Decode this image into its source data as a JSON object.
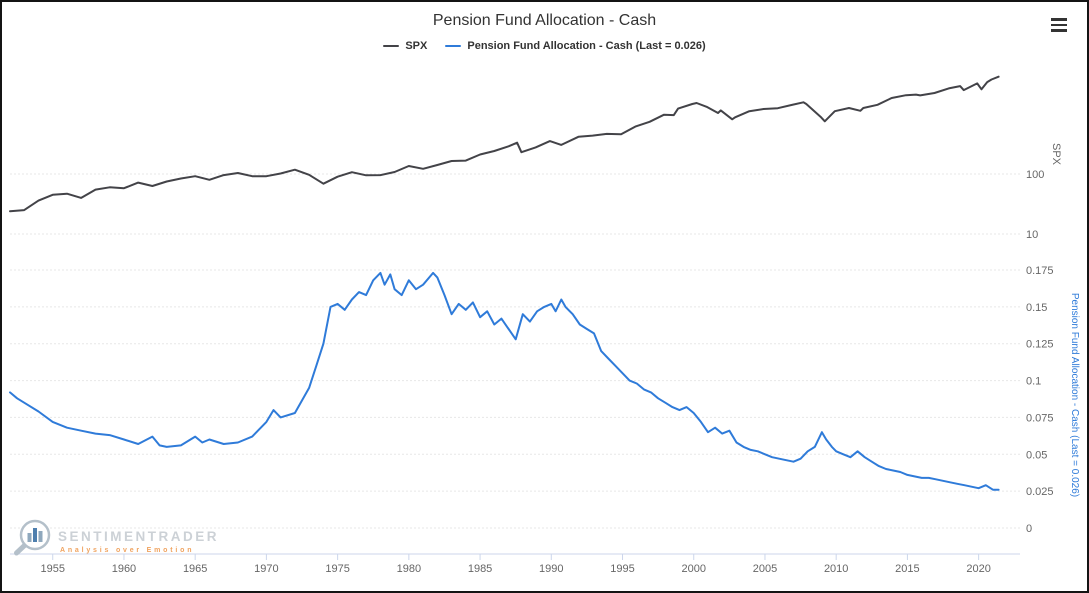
{
  "chart": {
    "title": "Pension Fund Allocation - Cash",
    "legend": [
      {
        "label": "SPX",
        "color": "#434348"
      },
      {
        "label": "Pension Fund Allocation - Cash (Last = 0.026)",
        "color": "#2f7bd9"
      }
    ]
  },
  "watermark": {
    "brand": "SENTIMENTRADER",
    "tagline": "Analysis over Emotion"
  },
  "chart_data": {
    "type": "line",
    "title": "Pension Fund Allocation - Cash",
    "grid": "dotted-horizontal",
    "legend_position": "top-center",
    "panels": [
      {
        "name": "SPX",
        "axis_label": "SPX",
        "scale": "log",
        "side": "right",
        "ticks": [
          100,
          10
        ],
        "tick_labels": [
          "100",
          "10"
        ],
        "color": "#666666"
      },
      {
        "name": "Pension Fund Allocation - Cash",
        "axis_label": "Pension Fund Allocation - Cash (Last = 0.026)",
        "scale": "linear",
        "side": "right",
        "ticks": [
          0.175,
          0.15,
          0.125,
          0.1,
          0.075,
          0.05,
          0.025,
          0
        ],
        "tick_labels": [
          "0.175",
          "0.15",
          "0.125",
          "0.1",
          "0.075",
          "0.05",
          "0.025",
          "0"
        ],
        "ylim": [
          0,
          0.1875
        ],
        "color": "#2f7bd9"
      }
    ],
    "x_axis": {
      "range": [
        1952,
        2021.5
      ],
      "ticks": [
        1955,
        1960,
        1965,
        1970,
        1975,
        1980,
        1985,
        1990,
        1995,
        2000,
        2005,
        2010,
        2015,
        2020
      ]
    },
    "series": [
      {
        "name": "SPX",
        "color": "#434348",
        "panel": 0,
        "points": [
          [
            1952,
            24
          ],
          [
            1953,
            25
          ],
          [
            1954,
            36
          ],
          [
            1955,
            45
          ],
          [
            1956,
            47
          ],
          [
            1957,
            40
          ],
          [
            1958,
            55
          ],
          [
            1959,
            60
          ],
          [
            1960,
            58
          ],
          [
            1961,
            72
          ],
          [
            1962,
            63
          ],
          [
            1963,
            75
          ],
          [
            1964,
            84
          ],
          [
            1965,
            92
          ],
          [
            1966,
            80
          ],
          [
            1967,
            96
          ],
          [
            1968,
            104
          ],
          [
            1969,
            92
          ],
          [
            1970,
            92
          ],
          [
            1971,
            102
          ],
          [
            1972,
            118
          ],
          [
            1973,
            97
          ],
          [
            1974,
            69
          ],
          [
            1975,
            90
          ],
          [
            1976,
            107
          ],
          [
            1977,
            95
          ],
          [
            1978,
            96
          ],
          [
            1979,
            108
          ],
          [
            1980,
            136
          ],
          [
            1981,
            122
          ],
          [
            1982,
            141
          ],
          [
            1983,
            165
          ],
          [
            1984,
            167
          ],
          [
            1985,
            211
          ],
          [
            1986,
            242
          ],
          [
            1987,
            290
          ],
          [
            1987.6,
            332
          ],
          [
            1987.9,
            231
          ],
          [
            1988.9,
            278
          ],
          [
            1989.9,
            353
          ],
          [
            1990.7,
            306
          ],
          [
            1991.9,
            417
          ],
          [
            1992.9,
            436
          ],
          [
            1993.9,
            466
          ],
          [
            1994.9,
            459
          ],
          [
            1995.9,
            616
          ],
          [
            1996.9,
            741
          ],
          [
            1997.9,
            970
          ],
          [
            1998.6,
            960
          ],
          [
            1998.9,
            1229
          ],
          [
            1999.9,
            1469
          ],
          [
            2000.2,
            1527
          ],
          [
            2000.9,
            1320
          ],
          [
            2001.7,
            1040
          ],
          [
            2001.9,
            1148
          ],
          [
            2002.7,
            815
          ],
          [
            2002.9,
            880
          ],
          [
            2003.9,
            1112
          ],
          [
            2004.9,
            1212
          ],
          [
            2005.9,
            1248
          ],
          [
            2006.9,
            1418
          ],
          [
            2007.7,
            1565
          ],
          [
            2007.9,
            1468
          ],
          [
            2008.9,
            903
          ],
          [
            2009.2,
            757
          ],
          [
            2009.9,
            1115
          ],
          [
            2010.9,
            1258
          ],
          [
            2011.7,
            1131
          ],
          [
            2011.9,
            1258
          ],
          [
            2012.9,
            1426
          ],
          [
            2013.9,
            1848
          ],
          [
            2014.9,
            2059
          ],
          [
            2015.6,
            2103
          ],
          [
            2015.9,
            2044
          ],
          [
            2016.9,
            2239
          ],
          [
            2017.9,
            2674
          ],
          [
            2018.7,
            2914
          ],
          [
            2018.95,
            2507
          ],
          [
            2019.9,
            3231
          ],
          [
            2020.2,
            2584
          ],
          [
            2020.6,
            3400
          ],
          [
            2020.9,
            3756
          ],
          [
            2021.4,
            4180
          ]
        ]
      },
      {
        "name": "Pension Fund Allocation - Cash",
        "color": "#2f7bd9",
        "panel": 1,
        "last": 0.026,
        "points": [
          [
            1952,
            0.092
          ],
          [
            1952.5,
            0.088
          ],
          [
            1953,
            0.085
          ],
          [
            1954,
            0.079
          ],
          [
            1955,
            0.072
          ],
          [
            1956,
            0.068
          ],
          [
            1957,
            0.066
          ],
          [
            1958,
            0.064
          ],
          [
            1959,
            0.063
          ],
          [
            1960,
            0.06
          ],
          [
            1961,
            0.057
          ],
          [
            1962,
            0.062
          ],
          [
            1962.5,
            0.056
          ],
          [
            1963,
            0.055
          ],
          [
            1964,
            0.056
          ],
          [
            1965,
            0.062
          ],
          [
            1965.5,
            0.058
          ],
          [
            1966,
            0.06
          ],
          [
            1967,
            0.057
          ],
          [
            1968,
            0.058
          ],
          [
            1969,
            0.062
          ],
          [
            1970,
            0.072
          ],
          [
            1970.5,
            0.08
          ],
          [
            1971,
            0.075
          ],
          [
            1972,
            0.078
          ],
          [
            1973,
            0.095
          ],
          [
            1973.5,
            0.11
          ],
          [
            1974,
            0.125
          ],
          [
            1974.5,
            0.15
          ],
          [
            1975,
            0.152
          ],
          [
            1975.5,
            0.148
          ],
          [
            1976,
            0.155
          ],
          [
            1976.5,
            0.16
          ],
          [
            1977,
            0.158
          ],
          [
            1977.5,
            0.168
          ],
          [
            1978,
            0.173
          ],
          [
            1978.3,
            0.165
          ],
          [
            1978.7,
            0.172
          ],
          [
            1979,
            0.162
          ],
          [
            1979.5,
            0.158
          ],
          [
            1980,
            0.168
          ],
          [
            1980.5,
            0.162
          ],
          [
            1981,
            0.165
          ],
          [
            1981.7,
            0.173
          ],
          [
            1982,
            0.17
          ],
          [
            1982.5,
            0.158
          ],
          [
            1983,
            0.145
          ],
          [
            1983.5,
            0.152
          ],
          [
            1984,
            0.148
          ],
          [
            1984.5,
            0.153
          ],
          [
            1985,
            0.143
          ],
          [
            1985.5,
            0.147
          ],
          [
            1986,
            0.138
          ],
          [
            1986.5,
            0.142
          ],
          [
            1987,
            0.135
          ],
          [
            1987.5,
            0.128
          ],
          [
            1988,
            0.145
          ],
          [
            1988.5,
            0.14
          ],
          [
            1989,
            0.147
          ],
          [
            1989.5,
            0.15
          ],
          [
            1990,
            0.152
          ],
          [
            1990.3,
            0.147
          ],
          [
            1990.7,
            0.155
          ],
          [
            1991,
            0.15
          ],
          [
            1991.5,
            0.145
          ],
          [
            1992,
            0.138
          ],
          [
            1992.5,
            0.135
          ],
          [
            1993,
            0.132
          ],
          [
            1993.5,
            0.12
          ],
          [
            1994,
            0.115
          ],
          [
            1994.5,
            0.11
          ],
          [
            1995,
            0.105
          ],
          [
            1995.5,
            0.1
          ],
          [
            1996,
            0.098
          ],
          [
            1996.5,
            0.094
          ],
          [
            1997,
            0.092
          ],
          [
            1997.5,
            0.088
          ],
          [
            1998,
            0.085
          ],
          [
            1998.5,
            0.082
          ],
          [
            1999,
            0.08
          ],
          [
            1999.5,
            0.082
          ],
          [
            2000,
            0.078
          ],
          [
            2000.5,
            0.072
          ],
          [
            2001,
            0.065
          ],
          [
            2001.5,
            0.068
          ],
          [
            2002,
            0.064
          ],
          [
            2002.5,
            0.066
          ],
          [
            2003,
            0.058
          ],
          [
            2003.5,
            0.055
          ],
          [
            2004,
            0.053
          ],
          [
            2004.5,
            0.052
          ],
          [
            2005,
            0.05
          ],
          [
            2005.5,
            0.048
          ],
          [
            2006,
            0.047
          ],
          [
            2006.5,
            0.046
          ],
          [
            2007,
            0.045
          ],
          [
            2007.5,
            0.047
          ],
          [
            2008,
            0.052
          ],
          [
            2008.5,
            0.055
          ],
          [
            2009,
            0.065
          ],
          [
            2009.3,
            0.06
          ],
          [
            2009.7,
            0.055
          ],
          [
            2010,
            0.052
          ],
          [
            2010.5,
            0.05
          ],
          [
            2011,
            0.048
          ],
          [
            2011.5,
            0.052
          ],
          [
            2012,
            0.048
          ],
          [
            2012.5,
            0.045
          ],
          [
            2013,
            0.042
          ],
          [
            2013.5,
            0.04
          ],
          [
            2014,
            0.039
          ],
          [
            2014.5,
            0.038
          ],
          [
            2015,
            0.036
          ],
          [
            2015.5,
            0.035
          ],
          [
            2016,
            0.034
          ],
          [
            2016.5,
            0.034
          ],
          [
            2017,
            0.033
          ],
          [
            2017.5,
            0.032
          ],
          [
            2018,
            0.031
          ],
          [
            2018.5,
            0.03
          ],
          [
            2019,
            0.029
          ],
          [
            2019.5,
            0.028
          ],
          [
            2020,
            0.027
          ],
          [
            2020.5,
            0.029
          ],
          [
            2021,
            0.026
          ],
          [
            2021.4,
            0.026
          ]
        ]
      }
    ]
  }
}
